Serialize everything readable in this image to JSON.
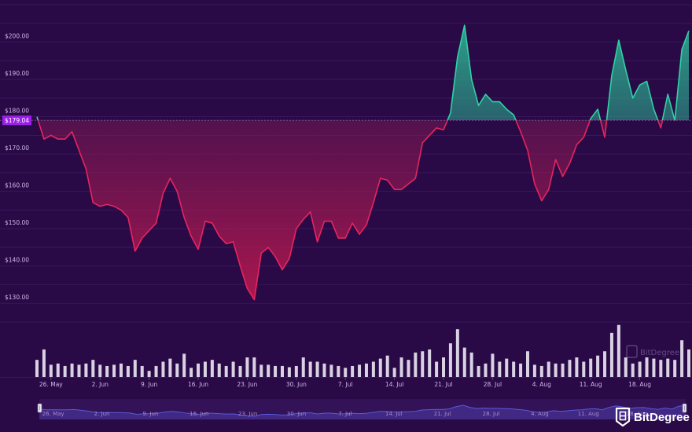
{
  "brand": {
    "name": "BitDegree",
    "watermark": "BitDegree",
    "icon": "bitdegree-logo-icon"
  },
  "colors": {
    "background": "#2a0a46",
    "grid": "#3d1a5e",
    "down": "#e8245f",
    "up": "#2ed3a3",
    "volume": "#d9d2e4",
    "current_badge": "#9b1fe8",
    "navigator_line": "#5a5ad8"
  },
  "current_price": {
    "value": 179.04,
    "label": "$179.04"
  },
  "chart_data": {
    "type": "area",
    "y_ticks": [
      {
        "value": 130,
        "label": "$130.00"
      },
      {
        "value": 140,
        "label": "$140.00"
      },
      {
        "value": 150,
        "label": "$150.00"
      },
      {
        "value": 160,
        "label": "$160.00"
      },
      {
        "value": 170,
        "label": "$170.00"
      },
      {
        "value": 180,
        "label": "$180.00"
      },
      {
        "value": 190,
        "label": "$190.00"
      },
      {
        "value": 200,
        "label": "$200.00"
      }
    ],
    "ylim": [
      125,
      210
    ],
    "baseline": 179.04,
    "x_ticks": [
      {
        "index": 2,
        "label": "26. May"
      },
      {
        "index": 9,
        "label": "2. Jun"
      },
      {
        "index": 16,
        "label": "9. Jun"
      },
      {
        "index": 23,
        "label": "16. Jun"
      },
      {
        "index": 30,
        "label": "23. Jun"
      },
      {
        "index": 37,
        "label": "30. Jun"
      },
      {
        "index": 44,
        "label": "7. Jul"
      },
      {
        "index": 51,
        "label": "14. Jul"
      },
      {
        "index": 58,
        "label": "21. Jul"
      },
      {
        "index": 65,
        "label": "28. Jul"
      },
      {
        "index": 72,
        "label": "4. Aug"
      },
      {
        "index": 79,
        "label": "11. Aug"
      },
      {
        "index": 86,
        "label": "18. Aug"
      }
    ],
    "prices": [
      180,
      174,
      175,
      174,
      174,
      176,
      171,
      166,
      157,
      156,
      156.5,
      156,
      155,
      153,
      144,
      147.5,
      149.5,
      151.5,
      159.5,
      163.5,
      160,
      153,
      148,
      144.5,
      152,
      151.5,
      148,
      146,
      146.5,
      140,
      134,
      131,
      143.5,
      145,
      142.5,
      139,
      142,
      150,
      152.5,
      154.5,
      146.5,
      152,
      152,
      147.5,
      147.5,
      151.5,
      148.5,
      151,
      157,
      163.5,
      163,
      160.5,
      160.5,
      162,
      163.5,
      173,
      175,
      177,
      176.5,
      181,
      196,
      204.5,
      190,
      183,
      186,
      184,
      184,
      182,
      180.5,
      176,
      171,
      162,
      157.5,
      160.5,
      168.5,
      164,
      167.5,
      172.5,
      174.5,
      179.5,
      182,
      174.5,
      191,
      200.5,
      192.5,
      185,
      188.5,
      189.5,
      182,
      177,
      186,
      179,
      198,
      203
    ],
    "volumes": [
      0.28,
      0.45,
      0.2,
      0.22,
      0.18,
      0.22,
      0.2,
      0.22,
      0.28,
      0.2,
      0.18,
      0.2,
      0.22,
      0.18,
      0.28,
      0.18,
      0.1,
      0.18,
      0.25,
      0.3,
      0.22,
      0.38,
      0.15,
      0.22,
      0.25,
      0.28,
      0.22,
      0.18,
      0.25,
      0.18,
      0.32,
      0.32,
      0.2,
      0.2,
      0.18,
      0.18,
      0.16,
      0.18,
      0.32,
      0.25,
      0.25,
      0.22,
      0.2,
      0.18,
      0.15,
      0.18,
      0.2,
      0.22,
      0.25,
      0.3,
      0.35,
      0.15,
      0.32,
      0.28,
      0.4,
      0.42,
      0.45,
      0.25,
      0.32,
      0.55,
      0.78,
      0.48,
      0.4,
      0.18,
      0.22,
      0.38,
      0.25,
      0.3,
      0.25,
      0.22,
      0.42,
      0.2,
      0.18,
      0.25,
      0.22,
      0.22,
      0.28,
      0.32,
      0.25,
      0.3,
      0.35,
      0.42,
      0.72,
      0.85,
      0.32,
      0.22,
      0.25,
      0.32,
      0.3,
      0.28,
      0.3,
      0.28,
      0.6,
      0.45
    ]
  },
  "navigator": {
    "labels": [
      "26. May",
      "2. Jun",
      "9. Jun",
      "16. Jun",
      "23. Jun",
      "30. Jun",
      "7. Jul",
      "14. Jul",
      "21. Jul",
      "28. Jul",
      "4. Aug",
      "11. Aug",
      "18. Aug"
    ]
  }
}
